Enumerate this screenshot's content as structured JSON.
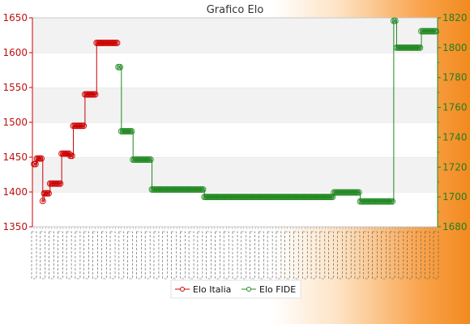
{
  "chart_data": {
    "type": "line",
    "title": "Grafico Elo",
    "xlabel": "",
    "ylabel": "",
    "x_tick_note": "dense overlapping date labels (unreadable)",
    "y_left": {
      "min": 1350,
      "max": 1650,
      "ticks": [
        1350,
        1400,
        1450,
        1500,
        1550,
        1600,
        1650
      ],
      "color": "#cc0000"
    },
    "y_right": {
      "min": 1680,
      "max": 1820,
      "ticks": [
        1680,
        1700,
        1720,
        1740,
        1760,
        1780,
        1800,
        1820
      ],
      "color": "#228822"
    },
    "grid": "horizontal bands",
    "legend_position": "bottom-center",
    "series": [
      {
        "name": "Elo Italia",
        "axis": "left",
        "color": "#cc0000",
        "values": [
          1440,
          1440,
          1448,
          1448,
          1448,
          1448,
          1387,
          1398,
          1398,
          1398,
          1398,
          1412,
          1412,
          1412,
          1412,
          1412,
          1412,
          1412,
          1412,
          1455,
          1455,
          1455,
          1455,
          1455,
          1455,
          1452,
          1452,
          1495,
          1495,
          1495,
          1495,
          1495,
          1495,
          1495,
          1495,
          1540,
          1540,
          1540,
          1540,
          1540,
          1540,
          1540,
          1540,
          1614,
          1614,
          1614,
          1614,
          1614,
          1614,
          1614,
          1614,
          1614,
          1614,
          1614,
          1614,
          1614,
          1614,
          1614
        ]
      },
      {
        "name": "Elo FIDE",
        "axis": "right",
        "start_index": 58,
        "color": "#228822",
        "values": [
          1787,
          1787,
          1744,
          1744,
          1744,
          1744,
          1744,
          1744,
          1744,
          1744,
          1725,
          1725,
          1725,
          1725,
          1725,
          1725,
          1725,
          1725,
          1725,
          1725,
          1725,
          1725,
          1725,
          1705,
          1705,
          1705,
          1705,
          1705,
          1705,
          1705,
          1705,
          1705,
          1705,
          1705,
          1705,
          1705,
          1705,
          1705,
          1705,
          1705,
          1705,
          1705,
          1705,
          1705,
          1705,
          1705,
          1705,
          1705,
          1705,
          1705,
          1705,
          1705,
          1705,
          1705,
          1705,
          1705,
          1705,
          1705,
          1705,
          1700,
          1700,
          1700,
          1700,
          1700,
          1700,
          1700,
          1700,
          1700,
          1700,
          1700,
          1700,
          1700,
          1700,
          1700,
          1700,
          1700,
          1700,
          1700,
          1700,
          1700,
          1700,
          1700,
          1700,
          1700,
          1700,
          1700,
          1700,
          1700,
          1700,
          1700,
          1700,
          1700,
          1700,
          1700,
          1700,
          1700,
          1700,
          1700,
          1700,
          1700,
          1700,
          1700,
          1700,
          1700,
          1700,
          1700,
          1700,
          1700,
          1700,
          1700,
          1700,
          1700,
          1700,
          1700,
          1700,
          1700,
          1700,
          1700,
          1700,
          1700,
          1700,
          1700,
          1700,
          1700,
          1700,
          1700,
          1700,
          1700,
          1700,
          1700,
          1700,
          1700,
          1700,
          1700,
          1700,
          1700,
          1700,
          1700,
          1700,
          1700,
          1700,
          1700,
          1700,
          1700,
          1700,
          1700,
          1700,
          1700,
          1703,
          1703,
          1703,
          1703,
          1703,
          1703,
          1703,
          1703,
          1703,
          1703,
          1703,
          1703,
          1703,
          1703,
          1703,
          1703,
          1703,
          1703,
          1697,
          1697,
          1697,
          1697,
          1697,
          1697,
          1697,
          1697,
          1697,
          1697,
          1697,
          1697,
          1697,
          1697,
          1697,
          1697,
          1697,
          1697,
          1697,
          1697,
          1697,
          1697,
          1697,
          1818,
          1818,
          1800,
          1800,
          1800,
          1800,
          1800,
          1800,
          1800,
          1800,
          1800,
          1800,
          1800,
          1800,
          1800,
          1800,
          1800,
          1800,
          1800,
          1811,
          1811,
          1811,
          1811,
          1811,
          1811,
          1811,
          1811,
          1811,
          1811,
          1811
        ]
      }
    ],
    "legend": [
      "Elo Italia",
      "Elo FIDE"
    ]
  }
}
